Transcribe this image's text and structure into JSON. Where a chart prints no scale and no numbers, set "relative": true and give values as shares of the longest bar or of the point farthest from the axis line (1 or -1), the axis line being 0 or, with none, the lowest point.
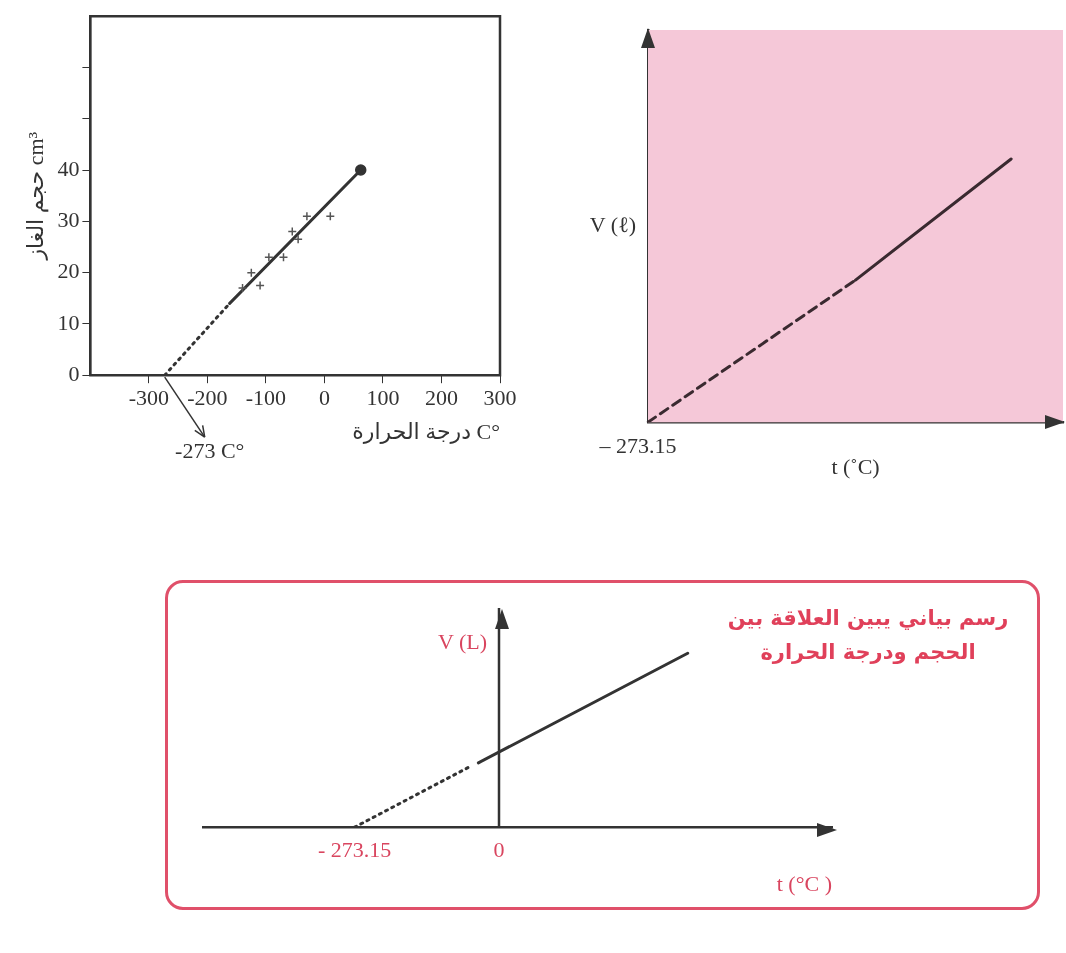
{
  "chart_data": [
    {
      "type": "scatter",
      "xlabel": "درجة الحرارة C°",
      "ylabel": "حجم الغاز cm³",
      "xlim": [
        -400,
        300
      ],
      "ylim": [
        0,
        70
      ],
      "xticks": [
        -300,
        -200,
        -100,
        0,
        100,
        200,
        300
      ],
      "yticks": [
        0,
        10,
        20,
        30,
        40,
        {
          "value": 50,
          "label": null
        },
        {
          "value": 60,
          "label": null
        }
      ],
      "grid": false,
      "legend": false,
      "annotations": [
        {
          "text": "-273 C°",
          "x": -273,
          "y": 0
        }
      ],
      "series": [
        {
          "type": "scatter",
          "marker": "cross",
          "color": "#555555",
          "x": [
            -140,
            -125,
            -110,
            -95,
            -70,
            -55,
            -45,
            -30,
            10
          ],
          "values": [
            17,
            20,
            17.5,
            23,
            23,
            28,
            26.5,
            31,
            31
          ]
        },
        {
          "type": "line",
          "marker": "none",
          "color": "#333333",
          "x": [
            -162,
            62
          ],
          "values": [
            14,
            40
          ]
        },
        {
          "type": "line",
          "marker": "none",
          "line_style": "dotted",
          "color": "#333333",
          "x": [
            -273,
            -162
          ],
          "values": [
            0,
            14
          ]
        },
        {
          "type": "scatter",
          "marker": "circle",
          "color": "#333333",
          "x": [
            62
          ],
          "values": [
            40
          ]
        }
      ]
    },
    {
      "type": "line",
      "relative": true,
      "xlabel": "t (˚C)",
      "ylabel": "V (ℓ)",
      "categories": [
        null,
        null,
        null,
        null,
        null,
        null,
        null,
        null,
        null
      ],
      "grid": false,
      "legend": false,
      "annotations": [
        "– 273.15"
      ],
      "series": [
        {
          "line_style": "dashed",
          "color": "#3a2a30",
          "values": [
            0,
            null,
            null,
            null,
            0.54,
            null,
            null,
            null,
            null
          ]
        },
        {
          "line_style": "solid",
          "color": "#3a2a30",
          "values": [
            null,
            null,
            null,
            null,
            0.54,
            null,
            null,
            1,
            null
          ]
        }
      ]
    },
    {
      "type": "line",
      "relative": true,
      "title": "رسم بياني يبين العلاقة بين الحجم ودرجة الحرارة",
      "xlabel": "t (°C )",
      "ylabel": "V (L)",
      "xlim": [
        -560,
        630
      ],
      "xticks": [
        {
          "value": -273.15,
          "label": "- 273.15"
        },
        0
      ],
      "ref_lines": [
        {
          "axis": "x",
          "value": 0,
          "color": "#333333"
        }
      ],
      "grid": false,
      "legend": false,
      "series": [
        {
          "line_style": "dotted",
          "color": "#333333",
          "x": [
            -273.15,
            -54
          ],
          "values": [
            0,
            0.35
          ]
        },
        {
          "line_style": "solid",
          "color": "#333333",
          "x": [
            -39,
            357
          ],
          "values": [
            0.37,
            1
          ]
        }
      ]
    }
  ]
}
